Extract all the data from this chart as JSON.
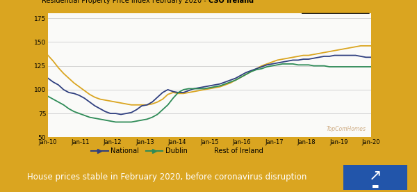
{
  "title_plain": "Residential Property Price Index February 2020 - ",
  "title_bold": "CSO Ireland",
  "ylim": [
    50,
    180
  ],
  "yticks": [
    50,
    75,
    100,
    125,
    150,
    175
  ],
  "xtick_labels": [
    "Jan-10",
    "Jan-11",
    "Jan-12",
    "Jan-13",
    "Jan-14",
    "Jan-15",
    "Jan-16",
    "Jan-17",
    "Jan-18",
    "Jan-19",
    "Jan-20"
  ],
  "national_color": "#2F3F7F",
  "dublin_color": "#2E8B57",
  "roi_color": "#DAA520",
  "plot_bg": "#FAFAF8",
  "outer_bg": "#DAA520",
  "banner_color": "#1E5799",
  "banner_text": "House prices stable in February 2020, before coronavirus disruption",
  "banner_text_color": "#FFFFFF",
  "logo_bg": "#2255AA",
  "watermark": "TopComHomes",
  "national": [
    112,
    108,
    105,
    100,
    97,
    96,
    94,
    91,
    87,
    83,
    80,
    77,
    75,
    75,
    74,
    75,
    76,
    79,
    83,
    84,
    87,
    92,
    97,
    100,
    98,
    97,
    97,
    99,
    101,
    102,
    103,
    104,
    105,
    106,
    108,
    110,
    112,
    115,
    118,
    120,
    122,
    124,
    126,
    127,
    128,
    129,
    130,
    131,
    131,
    132,
    132,
    133,
    134,
    135,
    135,
    136,
    136,
    136,
    136,
    136,
    135,
    134,
    134
  ],
  "dublin": [
    93,
    90,
    87,
    84,
    80,
    77,
    75,
    73,
    71,
    70,
    69,
    68,
    67,
    66,
    66,
    66,
    66,
    67,
    68,
    69,
    71,
    74,
    79,
    84,
    91,
    97,
    100,
    101,
    101,
    101,
    101,
    102,
    103,
    104,
    106,
    108,
    110,
    113,
    116,
    119,
    121,
    122,
    124,
    125,
    126,
    127,
    127,
    127,
    126,
    126,
    126,
    125,
    125,
    125,
    124,
    124,
    124,
    124,
    124,
    124,
    124,
    124,
    124
  ],
  "roi": [
    136,
    130,
    123,
    117,
    112,
    107,
    103,
    99,
    95,
    92,
    90,
    89,
    88,
    87,
    86,
    85,
    84,
    84,
    84,
    84,
    85,
    87,
    90,
    95,
    97,
    96,
    96,
    97,
    98,
    99,
    100,
    101,
    102,
    103,
    105,
    107,
    110,
    113,
    116,
    119,
    122,
    125,
    127,
    129,
    131,
    132,
    133,
    134,
    135,
    136,
    136,
    137,
    138,
    139,
    140,
    141,
    142,
    143,
    144,
    145,
    146,
    146,
    146
  ]
}
